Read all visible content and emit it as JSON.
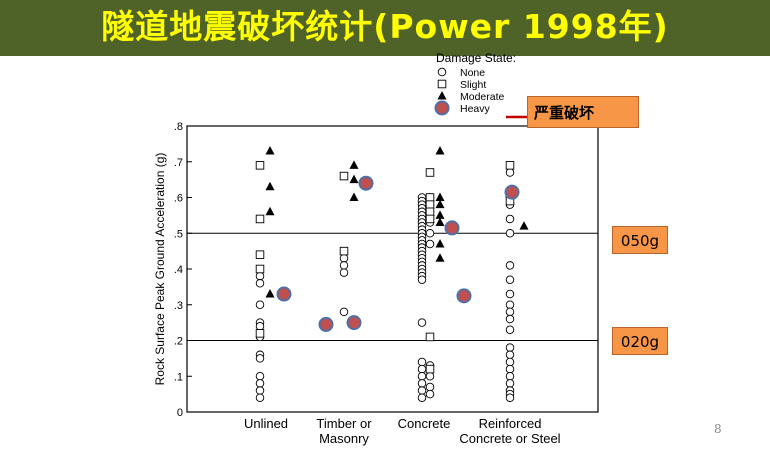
{
  "slide": {
    "title": "隧道地震破坏统计(Power 1998年)",
    "page_number": "8",
    "callouts": {
      "heavy": "严重破坏",
      "upper": "050g",
      "lower": "020g"
    }
  },
  "colors": {
    "title_bg": "#4f6228",
    "title_text": "#ffff00",
    "callout": "#f79646",
    "heavy_fill": "#c0504d",
    "heavy_ring": "#4f6fa8",
    "red_line": "#c00000"
  },
  "chart_data": {
    "type": "scatter",
    "title": "",
    "xlabel": "",
    "ylabel": "Rock Surface Peak Ground Acceleration (g)",
    "ylim": [
      0,
      0.8
    ],
    "yticks": [
      0,
      0.1,
      0.2,
      0.3,
      0.4,
      0.5,
      0.6,
      0.7,
      0.8
    ],
    "ytick_labels": [
      "0",
      ".1",
      ".2",
      ".3",
      ".4",
      ".5",
      ".6",
      ".7",
      ".8"
    ],
    "reference_lines": [
      0.2,
      0.5
    ],
    "categories": [
      {
        "label": [
          "Unlined"
        ]
      },
      {
        "label": [
          "Timber or",
          "Masonry"
        ]
      },
      {
        "label": [
          "Concrete"
        ]
      },
      {
        "label": [
          "Reinforced",
          "Concrete or Steel"
        ]
      }
    ],
    "legend": {
      "title": "Damage State:",
      "position": "top-right",
      "items": [
        {
          "label": "None",
          "marker": "circle-open"
        },
        {
          "label": "Slight",
          "marker": "square-open"
        },
        {
          "label": "Moderate",
          "marker": "triangle"
        },
        {
          "label": "Heavy",
          "marker": "circle-filled"
        }
      ]
    },
    "series": [
      {
        "name": "None",
        "marker": "circle-open",
        "points": [
          [
            0,
            0.38
          ],
          [
            0,
            0.36
          ],
          [
            0,
            0.3
          ],
          [
            0,
            0.25
          ],
          [
            0,
            0.24
          ],
          [
            0,
            0.21
          ],
          [
            0,
            0.16
          ],
          [
            0,
            0.15
          ],
          [
            0,
            0.1
          ],
          [
            0,
            0.08
          ],
          [
            0,
            0.06
          ],
          [
            0,
            0.04
          ],
          [
            1,
            0.43
          ],
          [
            1,
            0.41
          ],
          [
            1,
            0.39
          ],
          [
            1,
            0.28
          ],
          [
            2,
            0.6
          ],
          [
            2,
            0.59
          ],
          [
            2,
            0.58
          ],
          [
            2,
            0.57
          ],
          [
            2,
            0.56
          ],
          [
            2,
            0.55
          ],
          [
            2,
            0.54
          ],
          [
            2,
            0.53
          ],
          [
            2,
            0.52
          ],
          [
            2,
            0.51
          ],
          [
            2,
            0.5
          ],
          [
            2,
            0.49
          ],
          [
            2,
            0.48
          ],
          [
            2,
            0.47
          ],
          [
            2,
            0.46
          ],
          [
            2,
            0.45
          ],
          [
            2,
            0.44
          ],
          [
            2,
            0.43
          ],
          [
            2,
            0.42
          ],
          [
            2,
            0.41
          ],
          [
            2,
            0.4
          ],
          [
            2,
            0.39
          ],
          [
            2,
            0.38
          ],
          [
            2,
            0.37
          ],
          [
            2,
            0.25
          ],
          [
            2,
            0.14
          ],
          [
            2,
            0.12
          ],
          [
            2,
            0.1
          ],
          [
            2,
            0.08
          ],
          [
            2,
            0.06
          ],
          [
            2,
            0.04
          ],
          [
            2,
            0.6
          ],
          [
            2,
            0.59
          ],
          [
            2,
            0.58
          ],
          [
            2,
            0.57
          ],
          [
            2,
            0.56
          ],
          [
            2,
            0.55
          ],
          [
            2,
            0.54
          ],
          [
            2,
            0.53
          ],
          [
            2,
            0.5
          ],
          [
            2,
            0.47
          ],
          [
            2,
            0.13
          ],
          [
            2,
            0.1
          ],
          [
            2,
            0.07
          ],
          [
            2,
            0.05
          ],
          [
            3,
            0.67
          ],
          [
            3,
            0.62
          ],
          [
            3,
            0.6
          ],
          [
            3,
            0.58
          ],
          [
            3,
            0.54
          ],
          [
            3,
            0.5
          ],
          [
            3,
            0.41
          ],
          [
            3,
            0.37
          ],
          [
            3,
            0.33
          ],
          [
            3,
            0.3
          ],
          [
            3,
            0.28
          ],
          [
            3,
            0.26
          ],
          [
            3,
            0.23
          ],
          [
            3,
            0.18
          ],
          [
            3,
            0.16
          ],
          [
            3,
            0.14
          ],
          [
            3,
            0.12
          ],
          [
            3,
            0.1
          ],
          [
            3,
            0.08
          ],
          [
            3,
            0.06
          ],
          [
            3,
            0.05
          ],
          [
            3,
            0.04
          ]
        ]
      },
      {
        "name": "Slight",
        "marker": "square-open",
        "points": [
          [
            0,
            0.69
          ],
          [
            0,
            0.54
          ],
          [
            0,
            0.44
          ],
          [
            0,
            0.4
          ],
          [
            0,
            0.22
          ],
          [
            1,
            0.66
          ],
          [
            1,
            0.45
          ],
          [
            2,
            0.67
          ],
          [
            2,
            0.6
          ],
          [
            2,
            0.58
          ],
          [
            2,
            0.56
          ],
          [
            2,
            0.54
          ],
          [
            2,
            0.21
          ],
          [
            2,
            0.12
          ],
          [
            3,
            0.69
          ],
          [
            3,
            0.61
          ],
          [
            3,
            0.59
          ]
        ]
      },
      {
        "name": "Moderate",
        "marker": "triangle",
        "points": [
          [
            0,
            0.73
          ],
          [
            0,
            0.63
          ],
          [
            0,
            0.56
          ],
          [
            0,
            0.33
          ],
          [
            1,
            0.69
          ],
          [
            1,
            0.65
          ],
          [
            1,
            0.6
          ],
          [
            2,
            0.73
          ],
          [
            2,
            0.6
          ],
          [
            2,
            0.58
          ],
          [
            2,
            0.55
          ],
          [
            2,
            0.53
          ],
          [
            2,
            0.47
          ],
          [
            2,
            0.43
          ],
          [
            3,
            0.52
          ]
        ]
      },
      {
        "name": "Heavy",
        "marker": "circle-filled",
        "points": [
          [
            0,
            0.33
          ],
          [
            1,
            0.245
          ],
          [
            1,
            0.25
          ],
          [
            1,
            0.64
          ],
          [
            2,
            0.515
          ],
          [
            2,
            0.325
          ],
          [
            3,
            0.615
          ]
        ]
      }
    ]
  }
}
